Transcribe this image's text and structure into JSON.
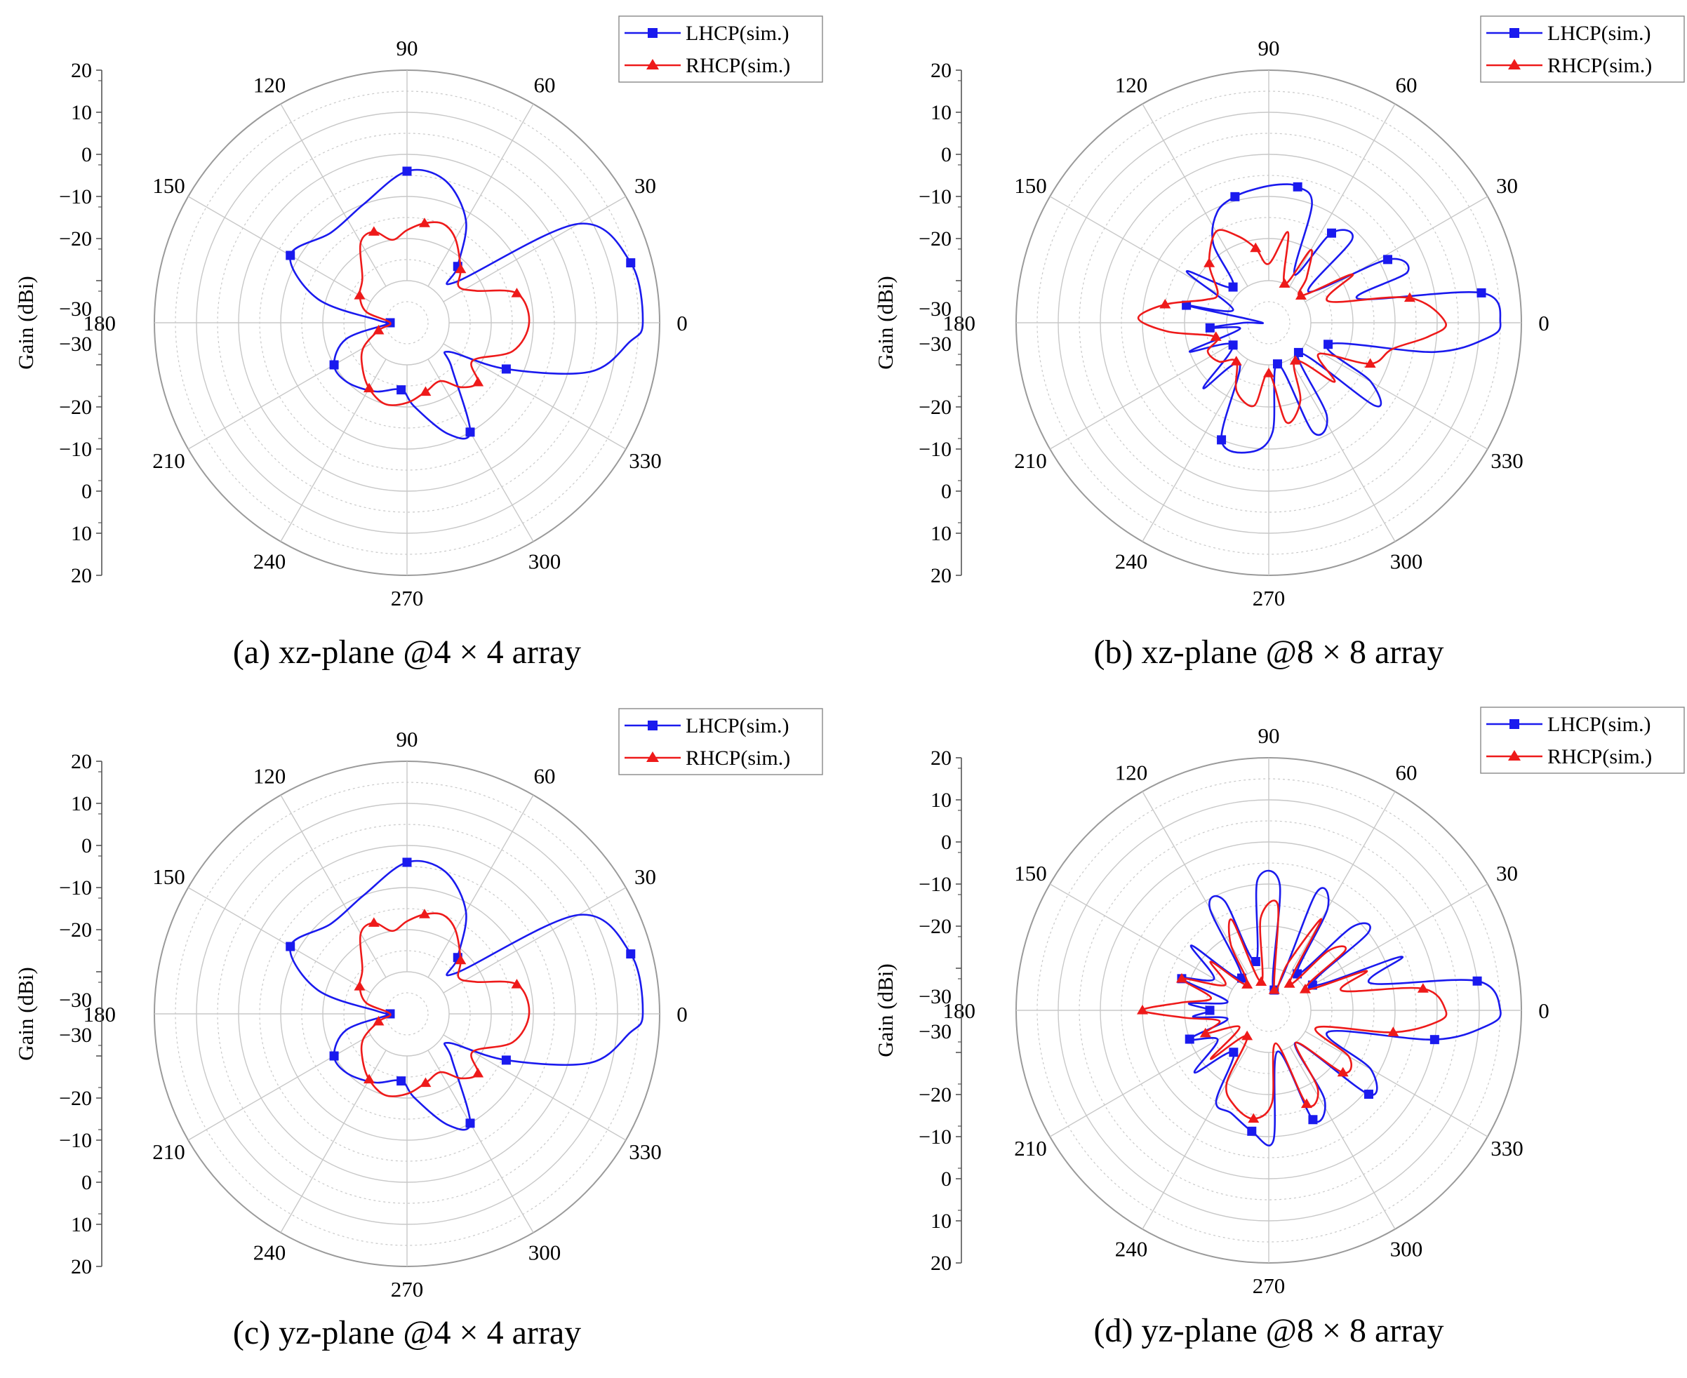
{
  "figure": {
    "ylabel": "Gain (dBi)",
    "angle_labels": [
      "0",
      "30",
      "60",
      "90",
      "120",
      "150",
      "180",
      "210",
      "240",
      "270",
      "300",
      "330"
    ],
    "radial_tick_labels": [
      "20",
      "10",
      "0",
      "−10",
      "−20",
      "−30",
      "−30",
      "−20",
      "−10",
      "0",
      "10",
      "20"
    ],
    "center_label": "180",
    "legend": [
      "LHCP(sim.)",
      "RHCP(sim.)"
    ],
    "colors": {
      "lhcp": "#1a1aee",
      "rhcp": "#ee1a1a",
      "grid": "#c8c8c8"
    }
  },
  "chart_data": [
    {
      "type": "polar-line",
      "caption": "(a) xz-plane @4 × 4 array",
      "title": "",
      "angle_unit": "deg",
      "radial_range": [
        -40,
        20
      ],
      "series": [
        {
          "name": "LHCP(sim.)",
          "marker": "square",
          "angles": [
            0,
            15,
            30,
            40,
            48,
            60,
            75,
            90,
            110,
            130,
            150,
            165,
            175,
            180,
            185,
            195,
            210,
            225,
            245,
            265,
            275,
            290,
            300,
            315,
            325,
            335,
            345,
            355
          ],
          "values": [
            16,
            15,
            7,
            -25,
            -22,
            -12,
            -5,
            -4,
            -10,
            -12,
            -8,
            -18,
            -33,
            -36,
            -35,
            -25,
            -20,
            -20,
            -22,
            -24,
            -20,
            -12,
            -10,
            -25,
            -28,
            -14,
            5,
            13
          ]
        },
        {
          "name": "RHCP(sim.)",
          "marker": "triangle",
          "angles": [
            0,
            15,
            25,
            35,
            45,
            60,
            70,
            80,
            90,
            100,
            110,
            120,
            135,
            150,
            165,
            180,
            195,
            210,
            225,
            240,
            255,
            270,
            285,
            300,
            310,
            320,
            330,
            345
          ],
          "values": [
            -11,
            -13,
            -22,
            -25,
            -22,
            -17,
            -15,
            -16,
            -18,
            -20,
            -17,
            -18,
            -25,
            -27,
            -30,
            -36,
            -33,
            -28,
            -25,
            -22,
            -20,
            -21,
            -23,
            -24,
            -20,
            -18,
            -22,
            -14
          ]
        }
      ]
    },
    {
      "type": "polar-line",
      "caption": "(b) xz-plane @8 × 8 array",
      "title": "",
      "angle_unit": "deg",
      "radial_range": [
        -40,
        20
      ],
      "series": [
        {
          "name": "LHCP(sim.)",
          "marker": "square",
          "angles": [
            0,
            8,
            15,
            20,
            28,
            38,
            45,
            55,
            62,
            70,
            78,
            85,
            95,
            105,
            115,
            125,
            135,
            148,
            160,
            168,
            175,
            180,
            185,
            192,
            200,
            212,
            225,
            235,
            248,
            262,
            272,
            282,
            292,
            302,
            315,
            322,
            330,
            340,
            350,
            356
          ],
          "values": [
            15,
            11,
            -18,
            -5,
            -8,
            -28,
            -12,
            -14,
            -27,
            -10,
            -7,
            -7,
            -8,
            -9,
            -11,
            -17,
            -28,
            -17,
            -31,
            -20,
            -38,
            -34,
            -26,
            -33,
            -20,
            -30,
            -18,
            -28,
            -10,
            -9,
            -14,
            -30,
            -12,
            -14,
            -30,
            -8,
            -12,
            -25,
            0,
            12
          ]
        },
        {
          "name": "RHCP(sim.)",
          "marker": "triangle",
          "angles": [
            0,
            10,
            20,
            30,
            40,
            50,
            60,
            68,
            78,
            90,
            100,
            110,
            120,
            135,
            150,
            160,
            170,
            178,
            185,
            195,
            205,
            218,
            230,
            245,
            260,
            270,
            280,
            292,
            305,
            318,
            328,
            338,
            348,
            355
          ],
          "values": [
            2,
            -6,
            -25,
            -17,
            -30,
            -26,
            -20,
            -30,
            -18,
            -26,
            -22,
            -18,
            -15,
            -20,
            -26,
            -24,
            -15,
            -9,
            -16,
            -27,
            -24,
            -25,
            -28,
            -22,
            -20,
            -28,
            -16,
            -20,
            -29,
            -19,
            -26,
            -14,
            -10,
            -2
          ]
        }
      ]
    },
    {
      "type": "polar-line",
      "caption": "(c) yz-plane @4 × 4 array",
      "title": "",
      "angle_unit": "deg",
      "radial_range": [
        -40,
        20
      ],
      "series": [
        {
          "name": "LHCP(sim.)",
          "marker": "square",
          "angles": [
            0,
            15,
            30,
            40,
            48,
            60,
            75,
            90,
            110,
            130,
            150,
            165,
            175,
            180,
            185,
            195,
            210,
            225,
            245,
            265,
            275,
            290,
            300,
            315,
            325,
            335,
            345,
            355
          ],
          "values": [
            16,
            15,
            7,
            -25,
            -22,
            -12,
            -5,
            -4,
            -10,
            -12,
            -8,
            -18,
            -33,
            -36,
            -35,
            -25,
            -20,
            -20,
            -22,
            -24,
            -20,
            -12,
            -10,
            -25,
            -28,
            -14,
            5,
            13
          ]
        },
        {
          "name": "RHCP(sim.)",
          "marker": "triangle",
          "angles": [
            0,
            15,
            25,
            35,
            45,
            60,
            70,
            80,
            90,
            100,
            110,
            120,
            135,
            150,
            165,
            180,
            195,
            210,
            225,
            240,
            255,
            270,
            285,
            300,
            310,
            320,
            330,
            345
          ],
          "values": [
            -11,
            -13,
            -22,
            -25,
            -22,
            -17,
            -15,
            -16,
            -18,
            -20,
            -17,
            -18,
            -25,
            -27,
            -30,
            -36,
            -33,
            -28,
            -25,
            -22,
            -20,
            -21,
            -23,
            -24,
            -20,
            -18,
            -22,
            -14
          ]
        }
      ]
    },
    {
      "type": "polar-line",
      "caption": "(d) yz-plane @8 × 8 array",
      "title": "",
      "angle_unit": "deg",
      "radial_range": [
        -40,
        20
      ],
      "series": [
        {
          "name": "LHCP(sim.)",
          "marker": "square",
          "angles": [
            0,
            8,
            15,
            22,
            30,
            38,
            45,
            52,
            60,
            68,
            75,
            85,
            95,
            105,
            112,
            120,
            130,
            140,
            150,
            160,
            168,
            175,
            180,
            185,
            192,
            200,
            210,
            220,
            230,
            240,
            250,
            262,
            272,
            282,
            292,
            302,
            310,
            320,
            330,
            340,
            350,
            356
          ],
          "values": [
            15,
            10,
            -15,
            -6,
            -28,
            -10,
            -12,
            -29,
            -12,
            -10,
            -35,
            -10,
            -9,
            -28,
            -12,
            -12,
            -30,
            -16,
            -25,
            -18,
            -30,
            -21,
            -26,
            -22,
            -30,
            -20,
            -26,
            -17,
            -27,
            -15,
            -14,
            -11,
            -9,
            -30,
            -12,
            -15,
            -30,
            -9,
            -12,
            -25,
            0,
            12
          ]
        },
        {
          "name": "RHCP(sim.)",
          "marker": "triangle",
          "angles": [
            0,
            8,
            15,
            22,
            30,
            38,
            45,
            52,
            60,
            68,
            75,
            85,
            95,
            105,
            112,
            120,
            130,
            140,
            150,
            160,
            168,
            175,
            180,
            185,
            192,
            200,
            210,
            220,
            230,
            240,
            250,
            262,
            272,
            282,
            292,
            302,
            310,
            320,
            330,
            340,
            350,
            356
          ],
          "values": [
            2,
            -3,
            -22,
            -15,
            -30,
            -17,
            -20,
            -32,
            -15,
            -28,
            -35,
            -15,
            -18,
            -33,
            -17,
            -22,
            -32,
            -22,
            -28,
            -18,
            -26,
            -19,
            -10,
            -20,
            -28,
            -24,
            -32,
            -22,
            -32,
            -20,
            -16,
            -14,
            -18,
            -32,
            -16,
            -18,
            -30,
            -17,
            -18,
            -28,
            -10,
            0
          ]
        }
      ]
    }
  ]
}
